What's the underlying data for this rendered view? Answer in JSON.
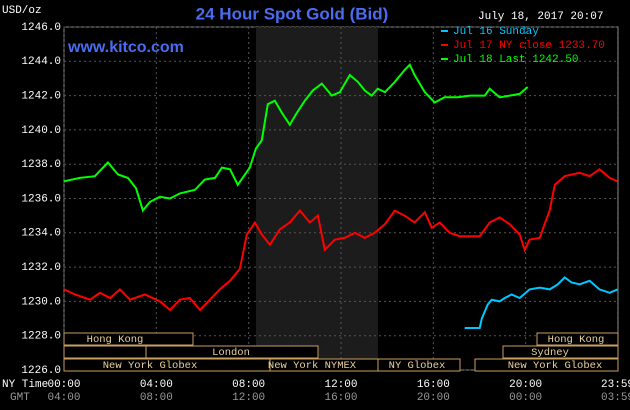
{
  "chart_data": {
    "type": "line",
    "title": "24 Hour Spot Gold (Bid)",
    "subtitle": "www.kitco.com",
    "timestamp": "July 18, 2017 20:07",
    "y_unit_label": "USD/oz",
    "xlim": [
      0,
      24
    ],
    "ylim": [
      1226,
      1246
    ],
    "grid": true,
    "xticks": [
      {
        "value": 0,
        "label": "00:00"
      },
      {
        "value": 4,
        "label": "04:00"
      },
      {
        "value": 8,
        "label": "08:00"
      },
      {
        "value": 12,
        "label": "12:00"
      },
      {
        "value": 16,
        "label": "16:00"
      },
      {
        "value": 20,
        "label": "20:00"
      },
      {
        "value": 23.98,
        "label": "23:59"
      }
    ],
    "x_axis_label": "NY Time",
    "x2_axis_label": "GMT",
    "x2_tick_labels": [
      "04:00",
      "08:00",
      "12:00",
      "16:00",
      "20:00",
      "00:00",
      "03:59"
    ],
    "yticks": [
      {
        "value": 1226,
        "label": "1226.0"
      },
      {
        "value": 1228,
        "label": "1228.0"
      },
      {
        "value": 1230,
        "label": "1230.0"
      },
      {
        "value": 1232,
        "label": "1232.0"
      },
      {
        "value": 1234,
        "label": "1234.0"
      },
      {
        "value": 1236,
        "label": "1236.0"
      },
      {
        "value": 1238,
        "label": "1238.0"
      },
      {
        "value": 1240,
        "label": "1240.0"
      },
      {
        "value": 1242,
        "label": "1242.0"
      },
      {
        "value": 1244,
        "label": "1244.0"
      },
      {
        "value": 1246,
        "label": "1246.0"
      }
    ],
    "sessions": [
      "Hong Kong",
      "Hong Kong",
      "London",
      "Sydney",
      "New York Globex",
      "New York NYMEX",
      "NY Globex",
      "New York Globex"
    ],
    "series": [
      {
        "name": "Jul 16 Sunday",
        "color": "#00c8ff",
        "x": [
          17.36,
          18.01,
          18.1,
          18.35,
          18.53,
          18.87,
          19.09,
          19.39,
          19.74,
          20.17,
          20.61,
          21.04,
          21.39,
          21.69,
          21.99,
          22.34,
          22.77,
          23.2,
          23.64,
          23.98
        ],
        "values": [
          1228.45,
          1228.45,
          1229.0,
          1229.8,
          1230.1,
          1230.0,
          1230.2,
          1230.4,
          1230.2,
          1230.7,
          1230.8,
          1230.7,
          1231.0,
          1231.4,
          1231.1,
          1231.0,
          1231.2,
          1230.7,
          1230.5,
          1230.7
        ]
      },
      {
        "name": "Jul 17 NY close 1233.70",
        "color": "#ff0000",
        "x": [
          0,
          0.48,
          1.13,
          1.56,
          2.0,
          2.42,
          2.86,
          3.51,
          4.16,
          4.59,
          5.02,
          5.45,
          5.89,
          6.32,
          6.75,
          7.19,
          7.62,
          7.92,
          8.27,
          8.57,
          8.92,
          9.35,
          9.78,
          10.22,
          10.65,
          11.0,
          11.3,
          11.73,
          12.16,
          12.6,
          13.03,
          13.46,
          13.9,
          14.33,
          14.76,
          15.19,
          15.63,
          15.93,
          16.28,
          16.71,
          17.14,
          17.58,
          18.01,
          18.44,
          18.87,
          19.31,
          19.74,
          19.96,
          20.17,
          20.61,
          20.82,
          21.04,
          21.26,
          21.69,
          22.34,
          22.77,
          23.2,
          23.64,
          23.98
        ],
        "values": [
          1230.7,
          1230.4,
          1230.1,
          1230.5,
          1230.2,
          1230.7,
          1230.1,
          1230.4,
          1230.0,
          1229.5,
          1230.1,
          1230.2,
          1229.5,
          1230.1,
          1230.7,
          1231.2,
          1231.9,
          1233.9,
          1234.6,
          1233.9,
          1233.3,
          1234.2,
          1234.6,
          1235.3,
          1234.6,
          1235.0,
          1233.0,
          1233.6,
          1233.7,
          1234.0,
          1233.7,
          1234.0,
          1234.5,
          1235.3,
          1235.0,
          1234.6,
          1235.2,
          1234.3,
          1234.6,
          1234.0,
          1233.8,
          1233.8,
          1233.8,
          1234.6,
          1234.9,
          1234.5,
          1233.9,
          1233.0,
          1233.6,
          1233.7,
          1234.5,
          1235.3,
          1236.8,
          1237.3,
          1237.5,
          1237.3,
          1237.7,
          1237.2,
          1237.0
        ]
      },
      {
        "name": "Jul 18 Last 1242.50",
        "color": "#00ff00",
        "x": [
          0,
          0.69,
          1.34,
          1.9,
          2.34,
          2.77,
          3.12,
          3.42,
          3.72,
          4.16,
          4.59,
          5.02,
          5.67,
          6.1,
          6.54,
          6.84,
          7.19,
          7.53,
          7.84,
          8.05,
          8.31,
          8.57,
          8.83,
          9.13,
          9.44,
          9.78,
          10.09,
          10.43,
          10.78,
          11.17,
          11.6,
          11.95,
          12.38,
          12.73,
          13.03,
          13.33,
          13.59,
          13.9,
          14.33,
          14.76,
          14.98,
          15.19,
          15.63,
          16.06,
          16.49,
          17.06,
          17.58,
          18.23,
          18.44,
          18.87,
          19.31,
          19.74,
          20.09
        ],
        "values": [
          1237.0,
          1237.2,
          1237.3,
          1238.1,
          1237.4,
          1237.2,
          1236.6,
          1235.3,
          1235.8,
          1236.1,
          1236.0,
          1236.3,
          1236.5,
          1237.1,
          1237.2,
          1237.8,
          1237.7,
          1236.8,
          1237.4,
          1237.8,
          1238.9,
          1239.4,
          1241.5,
          1241.7,
          1241.0,
          1240.3,
          1241.0,
          1241.7,
          1242.3,
          1242.7,
          1242.0,
          1242.2,
          1243.2,
          1242.8,
          1242.3,
          1242.0,
          1242.4,
          1242.2,
          1242.8,
          1243.5,
          1243.8,
          1243.2,
          1242.2,
          1241.6,
          1241.9,
          1241.9,
          1242.0,
          1242.0,
          1242.4,
          1241.9,
          1242.0,
          1242.1,
          1242.5
        ]
      }
    ]
  }
}
